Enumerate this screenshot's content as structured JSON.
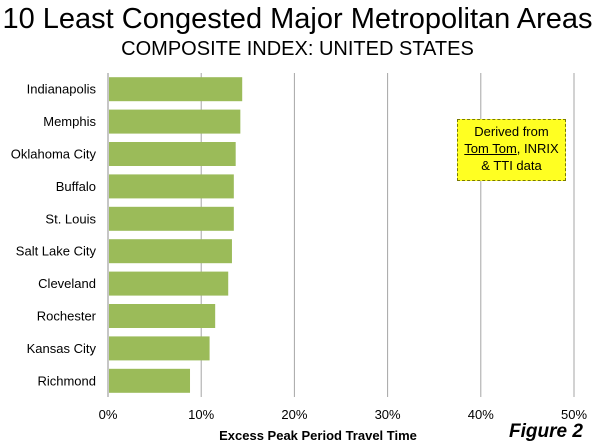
{
  "chart_data": {
    "type": "bar",
    "orientation": "horizontal",
    "title": "10 Least Congested Major Metropolitan Areas",
    "subtitle": "COMPOSITE INDEX: UNITED STATES",
    "xlabel": "Excess Peak Period Travel Time",
    "ylabel": "",
    "xlim": [
      0,
      50
    ],
    "x_ticks": [
      "0%",
      "10%",
      "20%",
      "30%",
      "40%",
      "50%"
    ],
    "x_tick_values": [
      0,
      10,
      20,
      30,
      40,
      50
    ],
    "grid": "vertical",
    "legend": "none",
    "categories": [
      "Indianapolis",
      "Memphis",
      "Oklahoma City",
      "Buffalo",
      "St. Louis",
      "Salt Lake City",
      "Cleveland",
      "Rochester",
      "Kansas City",
      "Richmond"
    ],
    "values": [
      14.4,
      14.2,
      13.7,
      13.5,
      13.5,
      13.3,
      12.9,
      11.5,
      10.9,
      8.8
    ],
    "bar_color": "#9bbb59"
  },
  "note": {
    "line1": "Derived from",
    "line2_part1": "Tom Tom",
    "line2_part2": ", INRIX",
    "line3": "& TTI data"
  },
  "figure_label": "Figure 2"
}
